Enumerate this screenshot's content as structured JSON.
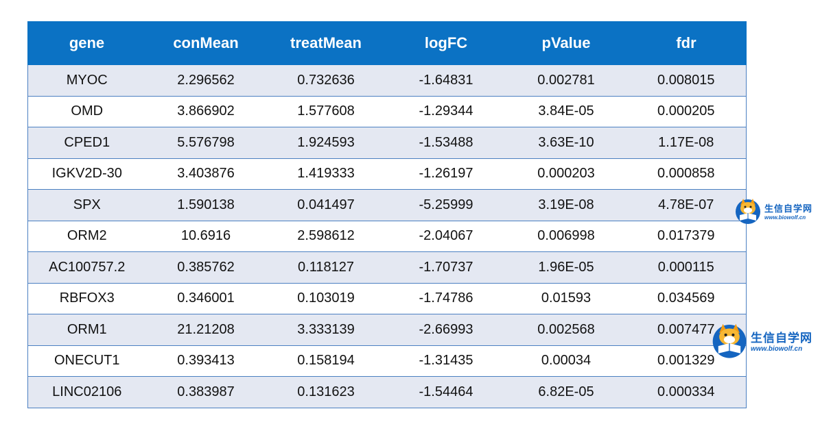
{
  "table": {
    "headers": [
      "gene",
      "conMean",
      "treatMean",
      "logFC",
      "pValue",
      "fdr"
    ],
    "rows": [
      [
        "MYOC",
        "2.296562",
        "0.732636",
        "-1.64831",
        "0.002781",
        "0.008015"
      ],
      [
        "OMD",
        "3.866902",
        "1.577608",
        "-1.29344",
        "3.84E-05",
        "0.000205"
      ],
      [
        "CPED1",
        "5.576798",
        "1.924593",
        "-1.53488",
        "3.63E-10",
        "1.17E-08"
      ],
      [
        "IGKV2D-30",
        "3.403876",
        "1.419333",
        "-1.26197",
        "0.000203",
        "0.000858"
      ],
      [
        "SPX",
        "1.590138",
        "0.041497",
        "-5.25999",
        "3.19E-08",
        "4.78E-07"
      ],
      [
        "ORM2",
        "10.6916",
        "2.598612",
        "-2.04067",
        "0.006998",
        "0.017379"
      ],
      [
        "AC100757.2",
        "0.385762",
        "0.118127",
        "-1.70737",
        "1.96E-05",
        "0.000115"
      ],
      [
        "RBFOX3",
        "0.346001",
        "0.103019",
        "-1.74786",
        "0.01593",
        "0.034569"
      ],
      [
        "ORM1",
        "21.21208",
        "3.333139",
        "-2.66993",
        "0.002568",
        "0.007477"
      ],
      [
        "ONECUT1",
        "0.393413",
        "0.158194",
        "-1.31435",
        "0.00034",
        "0.001329"
      ],
      [
        "LINC02106",
        "0.383987",
        "0.131623",
        "-1.54464",
        "6.82E-05",
        "0.000334"
      ]
    ]
  },
  "watermark": {
    "name_cn": "生信自学网",
    "url": "www.biowolf.cn",
    "icon": "wolf-reading-book-logo",
    "color": "#1565c0"
  },
  "colors": {
    "header_bg": "#0b72c4",
    "row_alt_bg": "#e4e8f2",
    "border": "#4a7fc1"
  }
}
